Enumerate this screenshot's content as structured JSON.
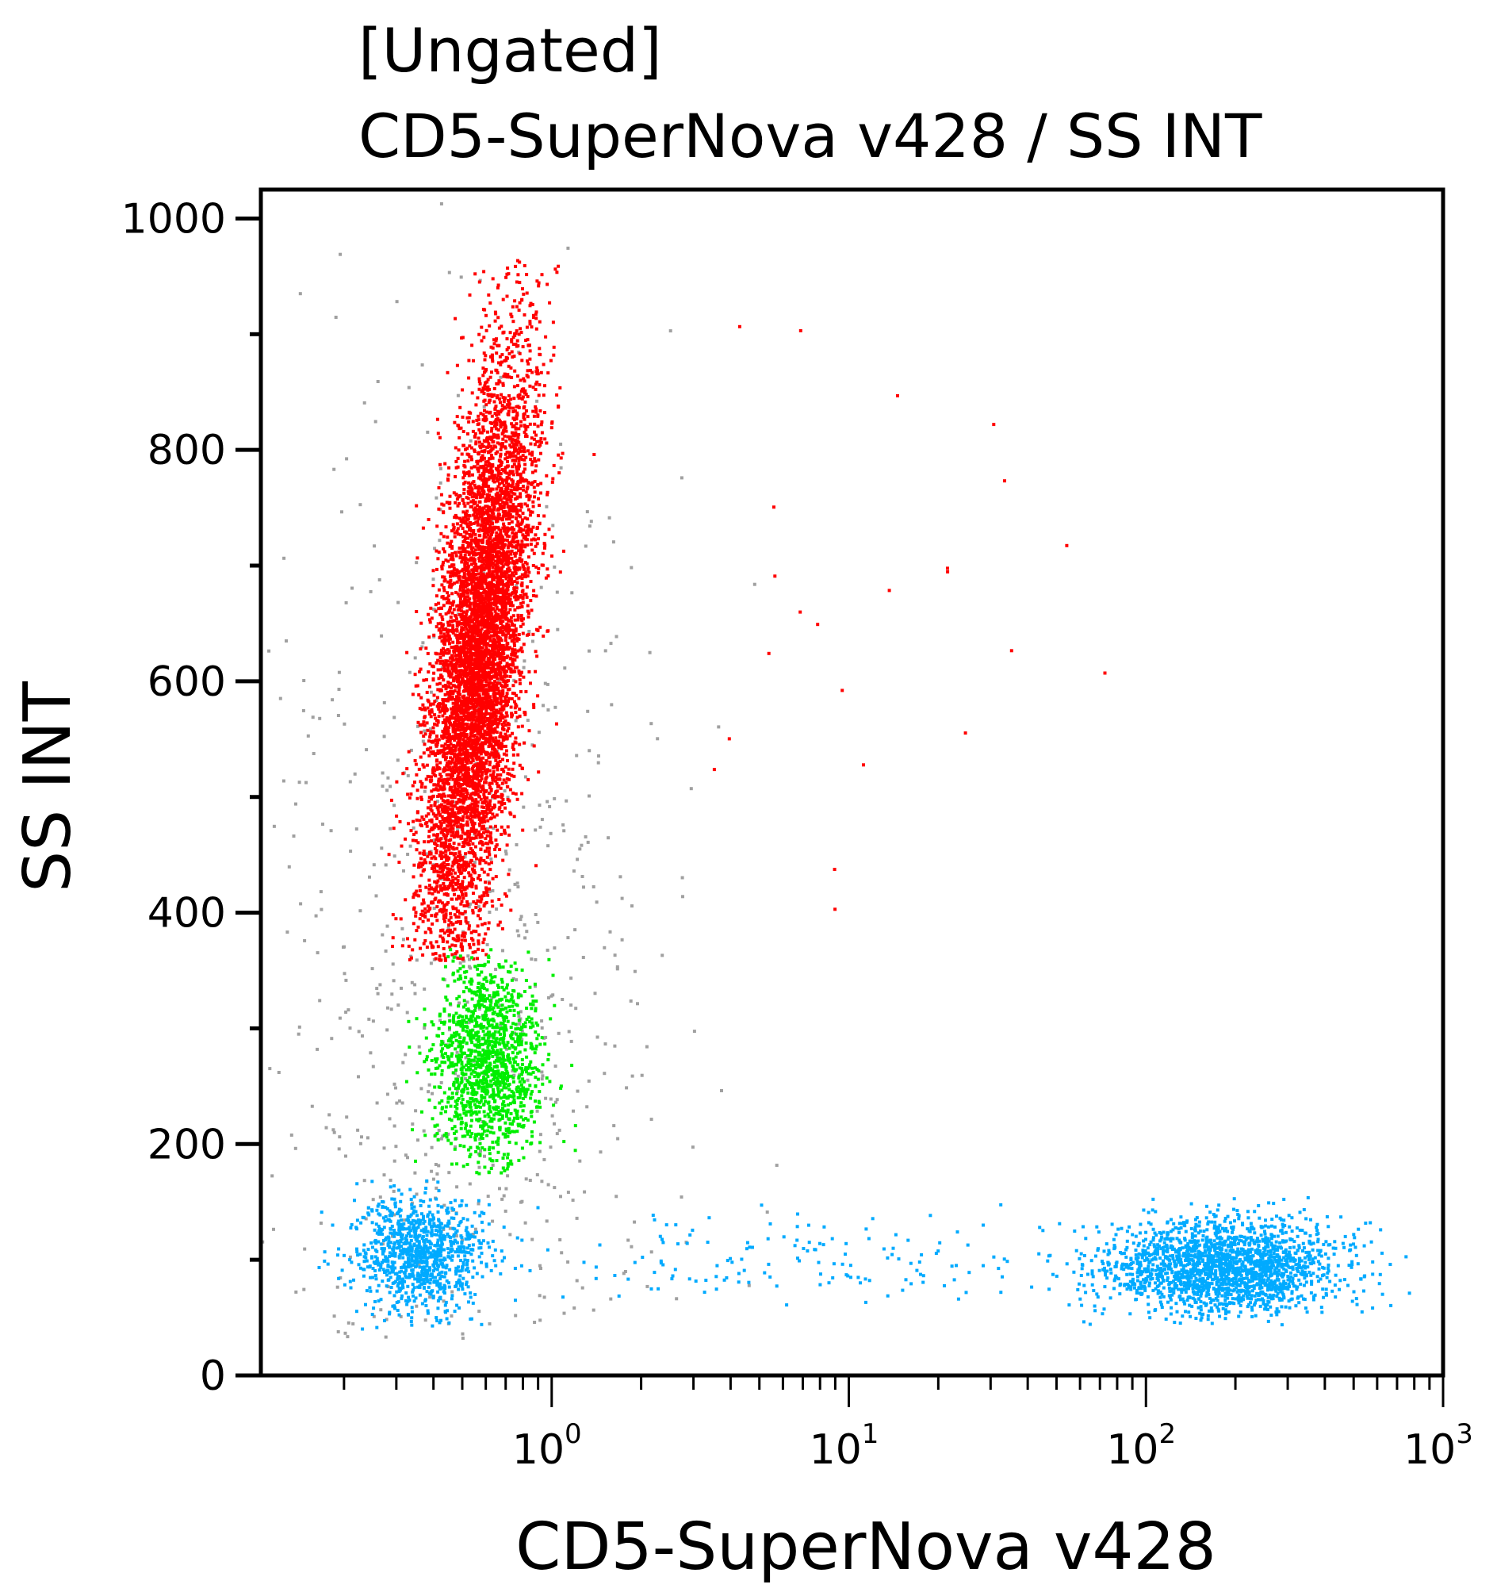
{
  "chart_data": {
    "type": "scatter",
    "title_lines": [
      "[Ungated]",
      "CD5-SuperNova v428 / SS INT"
    ],
    "xlabel": "CD5-SuperNova v428",
    "ylabel": "SS INT",
    "x_scale": "log",
    "xlim": [
      0.105,
      1000
    ],
    "ylim": [
      0,
      1025
    ],
    "x_ticks": [
      {
        "value": 1,
        "base": "10",
        "exp": "0"
      },
      {
        "value": 10,
        "base": "10",
        "exp": "1"
      },
      {
        "value": 100,
        "base": "10",
        "exp": "2"
      },
      {
        "value": 1000,
        "base": "10",
        "exp": "3"
      }
    ],
    "y_ticks": [
      {
        "value": 0,
        "label": "0"
      },
      {
        "value": 200,
        "label": "200"
      },
      {
        "value": 400,
        "label": "400"
      },
      {
        "value": 600,
        "label": "600"
      },
      {
        "value": 800,
        "label": "800"
      },
      {
        "value": 1000,
        "label": "1000"
      }
    ],
    "grid": false,
    "populations": [
      {
        "color": "#a0a0a0",
        "count": 700,
        "log10x_mean": -0.3,
        "log10x_sd": 0.35,
        "y_mean": 300,
        "y_sd": 280,
        "y_min": 30,
        "y_max": 1025
      },
      {
        "color": "#ff0000",
        "count": 6500,
        "log10x_mean": -0.25,
        "log10x_sd": 0.075,
        "y_mean": 620,
        "y_sd": 130,
        "y_min": 360,
        "y_max": 965
      },
      {
        "color": "#00ee00",
        "count": 1300,
        "log10x_mean": -0.22,
        "log10x_sd": 0.09,
        "y_mean": 270,
        "y_sd": 45,
        "y_min": 175,
        "y_max": 370
      },
      {
        "color": "#00aaff",
        "count": 1000,
        "log10x_mean": -0.45,
        "log10x_sd": 0.11,
        "y_mean": 105,
        "y_sd": 25,
        "y_min": 40,
        "y_max": 175
      },
      {
        "color": "#00aaff",
        "count": 2000,
        "log10x_mean": 2.25,
        "log10x_sd": 0.2,
        "y_mean": 95,
        "y_sd": 20,
        "y_min": 45,
        "y_max": 170
      },
      {
        "color": "#00aaff",
        "count": 160,
        "log10x_mean": 0.8,
        "log10x_sd": 0.5,
        "y_mean": 100,
        "y_sd": 22,
        "y_min": 60,
        "y_max": 150
      },
      {
        "color": "#ff0000",
        "count": 25,
        "log10x_mean": 1.2,
        "log10x_sd": 0.6,
        "y_mean": 650,
        "y_sd": 160,
        "y_min": 380,
        "y_max": 940
      }
    ]
  }
}
